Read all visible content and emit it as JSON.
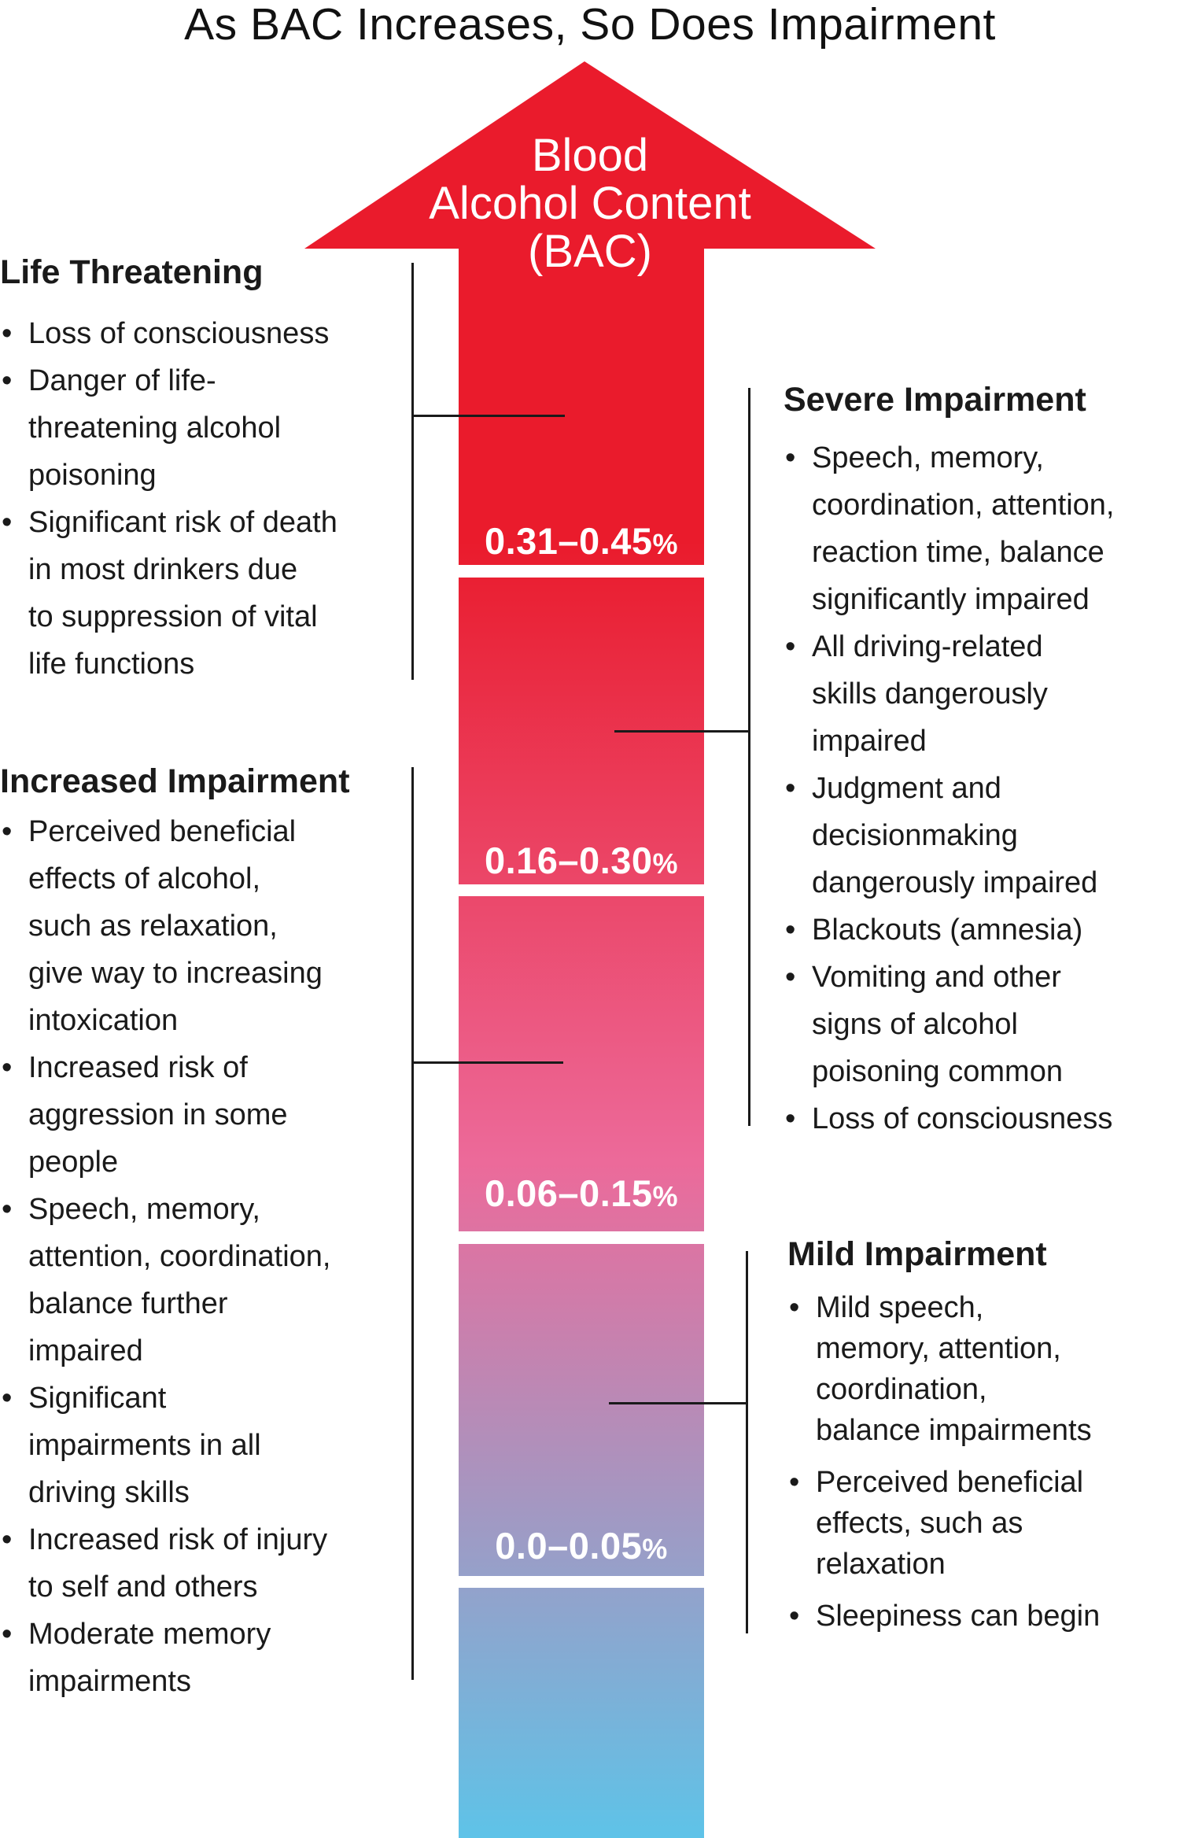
{
  "title": "As BAC Increases, So Does Impairment",
  "arrow": {
    "label_lines": [
      "Blood",
      "Alcohol Content",
      "(BAC)"
    ],
    "gradient_top_color": "#ea1b2c",
    "gradient_mid_color": "#ec6a9a",
    "gradient_bottom_color": "#5ec3e8"
  },
  "ranges": [
    {
      "value": "0.31–0.45",
      "unit": "%"
    },
    {
      "value": "0.16–0.30",
      "unit": "%"
    },
    {
      "value": "0.06–0.15",
      "unit": "%"
    },
    {
      "value": "0.0–0.05",
      "unit": "%"
    }
  ],
  "panels": {
    "life_threatening": {
      "heading": "Life Threatening",
      "items": [
        [
          "Loss of consciousness"
        ],
        [
          "Danger of life-",
          "threatening alcohol",
          "poisoning"
        ],
        [
          "Significant risk of death",
          "in most drinkers due",
          "to suppression of vital",
          "life functions"
        ]
      ]
    },
    "increased_impairment": {
      "heading": "Increased Impairment",
      "items": [
        [
          "Perceived beneficial",
          "effects of alcohol,",
          "such as relaxation,",
          "give way to increasing",
          "intoxication"
        ],
        [
          "Increased risk of",
          "aggression in some",
          "people"
        ],
        [
          "Speech, memory,",
          "attention, coordination,",
          "balance further",
          "impaired"
        ],
        [
          "Significant",
          "impairments in all",
          "driving skills"
        ],
        [
          "Increased risk of injury",
          "to self and others"
        ],
        [
          "Moderate memory",
          "impairments"
        ]
      ]
    },
    "severe_impairment": {
      "heading": "Severe Impairment",
      "items": [
        [
          "Speech, memory,",
          "coordination, attention,",
          "reaction time, balance",
          "significantly impaired"
        ],
        [
          "All driving-related",
          "skills dangerously",
          "impaired"
        ],
        [
          "Judgment and",
          "decisionmaking",
          "dangerously impaired"
        ],
        [
          "Blackouts (amnesia)"
        ],
        [
          "Vomiting and other",
          "signs of alcohol",
          "poisoning common"
        ],
        [
          "Loss of consciousness"
        ]
      ]
    },
    "mild_impairment": {
      "heading": "Mild Impairment",
      "items": [
        [
          "Mild speech,",
          "memory, attention,",
          "coordination,",
          "balance impairments"
        ],
        [
          "Perceived beneficial",
          "effects, such as",
          "relaxation"
        ],
        [
          "Sleepiness can begin"
        ]
      ]
    }
  }
}
